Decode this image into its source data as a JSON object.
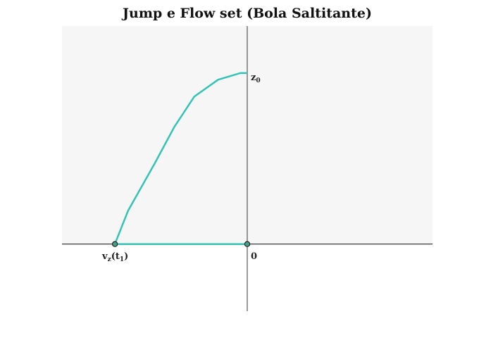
{
  "chart_data": {
    "type": "line",
    "title": "Jump e Flow set (Bola Saltitante)",
    "xlim": [
      -1.4,
      1.4
    ],
    "ylim": [
      -0.4,
      1.3
    ],
    "grid": false,
    "flow_series": {
      "x": [
        -1.0,
        -0.9,
        -0.7,
        -0.55,
        -0.4,
        -0.22,
        -0.05,
        0.0
      ],
      "y": [
        0.0,
        0.2,
        0.48,
        0.7,
        0.88,
        0.98,
        1.02,
        1.02
      ]
    },
    "jump_series": {
      "x": [
        -1.0,
        0.0
      ],
      "y": [
        0.0,
        0.0
      ]
    },
    "points": [
      {
        "x": -1.0,
        "y": 0.0
      },
      {
        "x": 0.0,
        "y": 0.0
      }
    ],
    "labels": {
      "z0_main": "z",
      "z0_sub": "0",
      "origin": "0",
      "vz_main": "v",
      "vz_sub1": "z",
      "vz_open": "(t",
      "vz_sub2": "1",
      "vz_close": ")"
    },
    "colors": {
      "series": "#35c3b6",
      "background": "#f6f6f6",
      "axis": "#222222",
      "point_fill": "#4a9e8a"
    }
  }
}
